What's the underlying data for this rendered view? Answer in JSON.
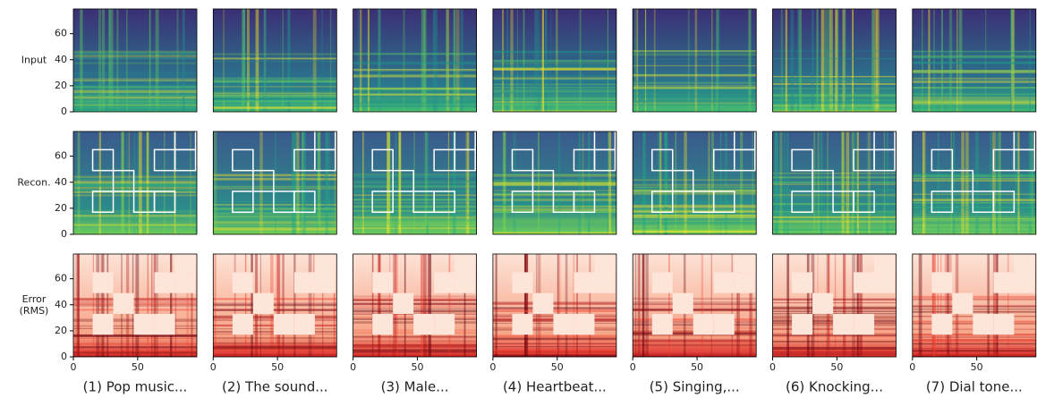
{
  "chart_data": {
    "type": "heatmap-grid",
    "row_labels": [
      [
        "Input"
      ],
      [
        "Recon."
      ],
      [
        "Error",
        "(RMS)"
      ]
    ],
    "column_titles": [
      "(1) Pop music...",
      "(2) The sound...",
      "(3) Male...",
      "(4) Heartbeat...",
      "(5) Singing,...",
      "(6) Knocking...",
      "(7) Dial tone..."
    ],
    "xlim": [
      0,
      96
    ],
    "ylim": [
      0,
      79
    ],
    "xticks": [
      0,
      50
    ],
    "yticks": [
      0,
      20,
      40,
      60
    ]
  }
}
